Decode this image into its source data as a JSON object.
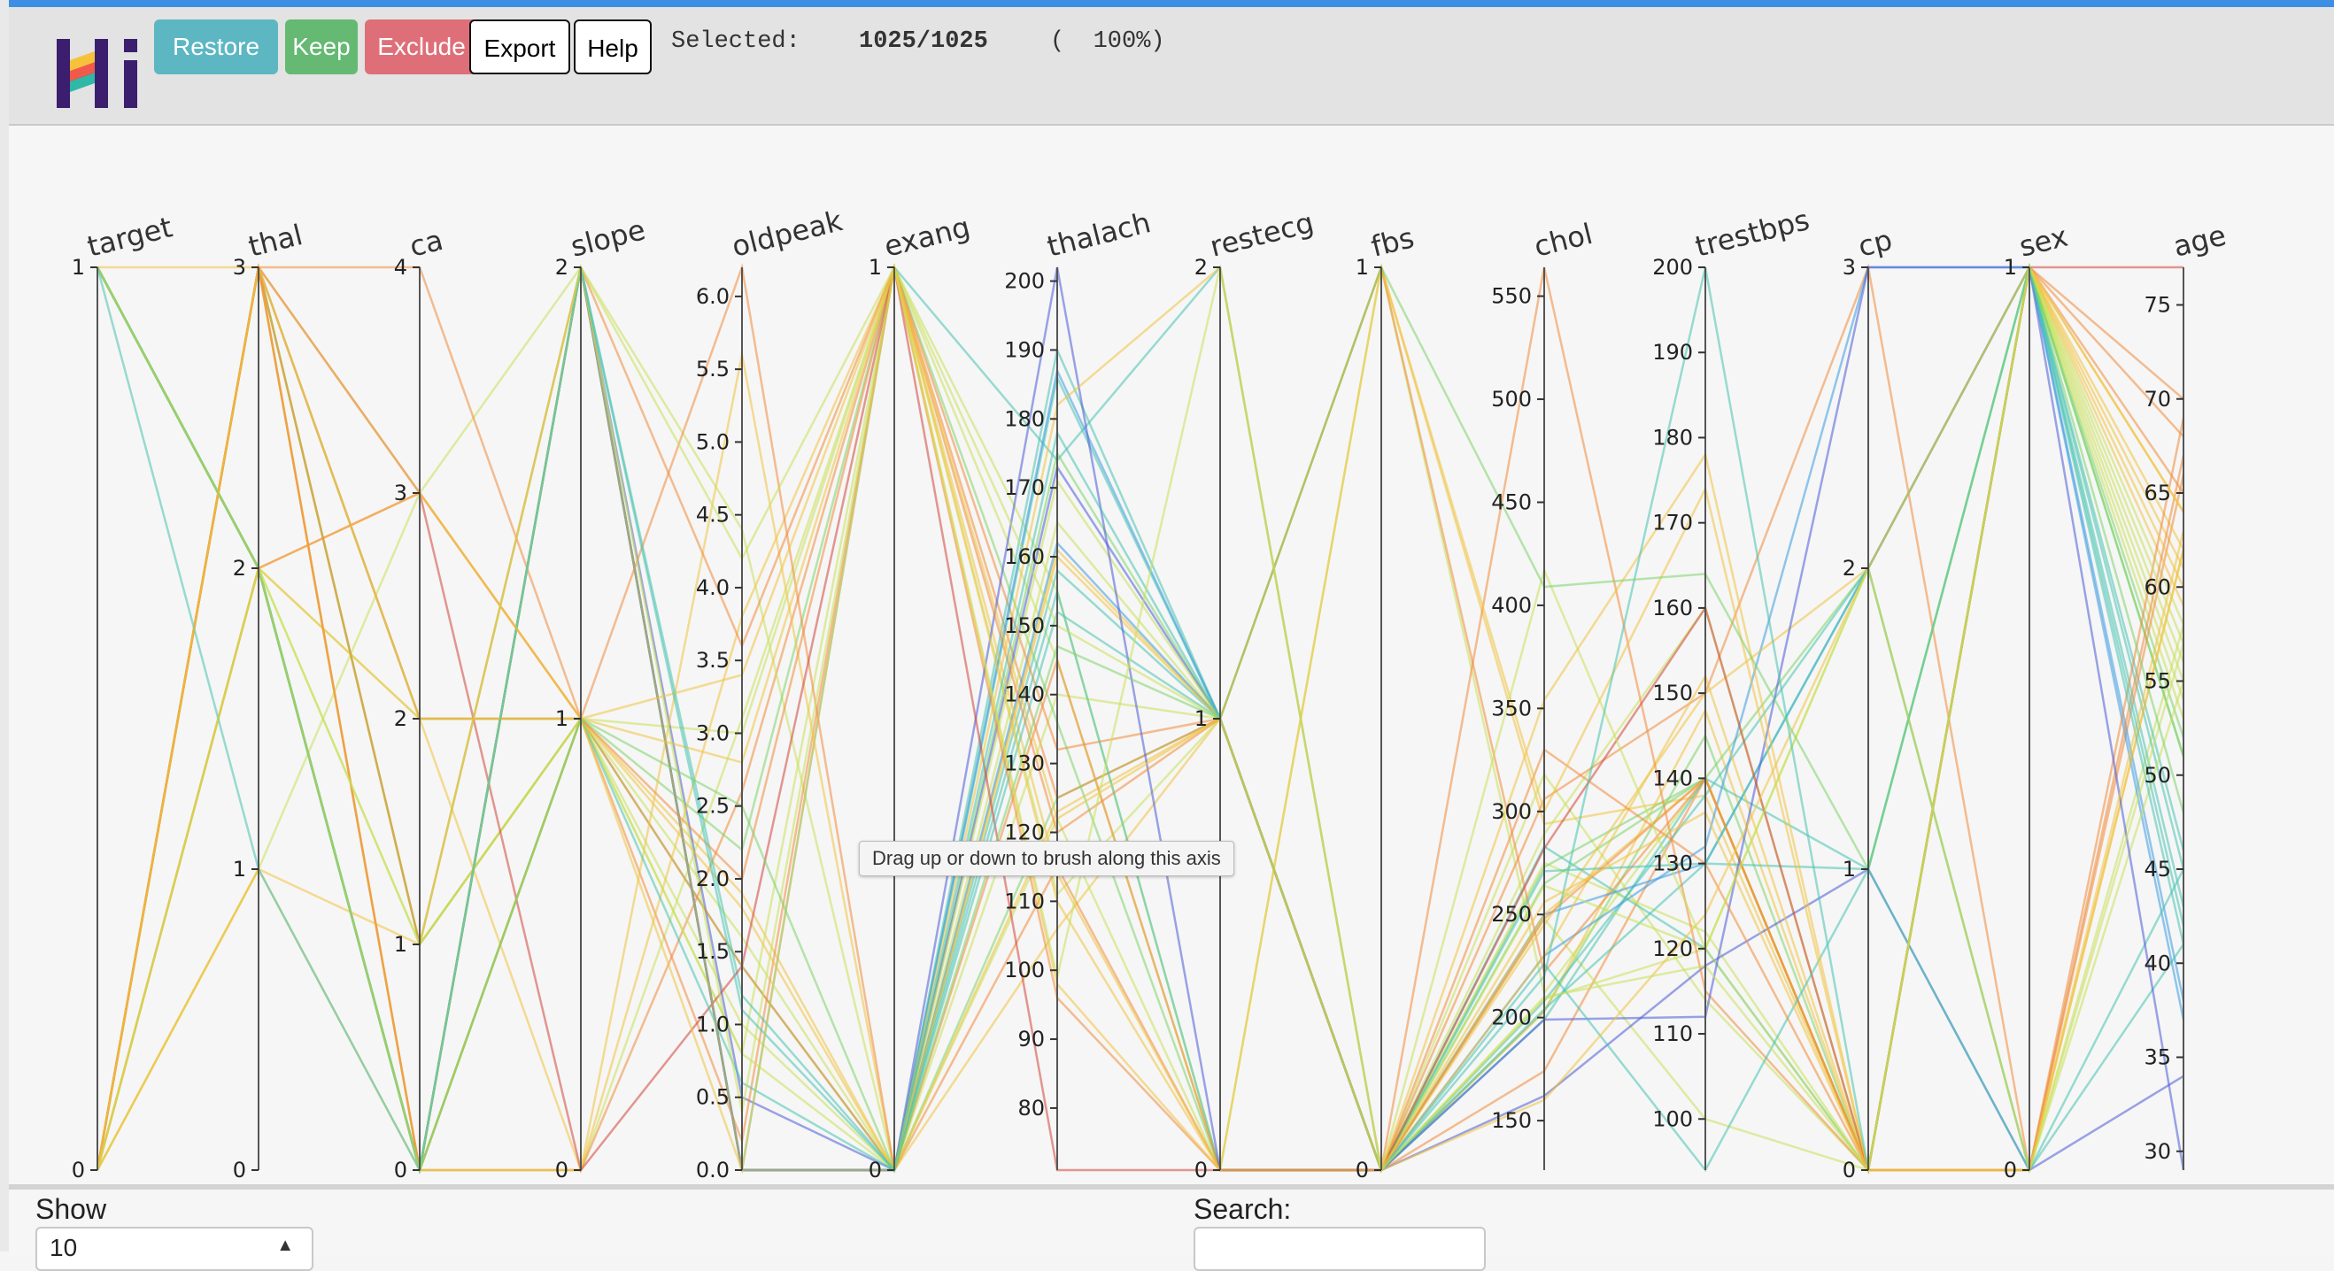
{
  "app": {
    "logo_text": "Hi"
  },
  "toolbar": {
    "restore_label": "Restore",
    "keep_label": "Keep",
    "exclude_label": "Exclude",
    "export_label": "Export",
    "help_label": "Help",
    "selection": {
      "label": "Selected:",
      "count": "1025/1025",
      "percent": "(  100%)"
    }
  },
  "colors": {
    "accent_top": "#3d8fe3",
    "restore": "#5cb7c3",
    "keep": "#65b972",
    "exclude": "#de6f78"
  },
  "tooltip": {
    "text": "Drag up or down to brush along this axis"
  },
  "controls": {
    "show_label": "Show",
    "show_value": "10",
    "search_label": "Search:",
    "search_value": ""
  },
  "chart_data": {
    "type": "parallel-coordinates",
    "title": "",
    "color_by": "age",
    "color_scale": [
      "#4a5bd6",
      "#3a9be0",
      "#47c2b0",
      "#7ed36a",
      "#c8e05a",
      "#f0c240",
      "#f08a3a",
      "#d0463a"
    ],
    "axes": [
      {
        "name": "target",
        "min": 0,
        "max": 1,
        "ticks": [
          0,
          1
        ]
      },
      {
        "name": "thal",
        "min": 0,
        "max": 3,
        "ticks": [
          0,
          1,
          2,
          3
        ]
      },
      {
        "name": "ca",
        "min": 0,
        "max": 4,
        "ticks": [
          0,
          1,
          2,
          3,
          4
        ]
      },
      {
        "name": "slope",
        "min": 0,
        "max": 2,
        "ticks": [
          0,
          1,
          2
        ]
      },
      {
        "name": "oldpeak",
        "min": 0,
        "max": 6.2,
        "ticks": [
          0.0,
          0.5,
          1.0,
          1.5,
          2.0,
          2.5,
          3.0,
          3.5,
          4.0,
          4.5,
          5.0,
          5.5,
          6.0
        ],
        "decimals": 1
      },
      {
        "name": "exang",
        "min": 0,
        "max": 1,
        "ticks": [
          0,
          1
        ]
      },
      {
        "name": "thalach",
        "min": 71,
        "max": 202,
        "ticks": [
          80,
          90,
          100,
          110,
          120,
          130,
          140,
          150,
          160,
          170,
          180,
          190,
          200
        ]
      },
      {
        "name": "restecg",
        "min": 0,
        "max": 2,
        "ticks": [
          0,
          1,
          2
        ]
      },
      {
        "name": "fbs",
        "min": 0,
        "max": 1,
        "ticks": [
          0,
          1
        ]
      },
      {
        "name": "chol",
        "min": 126,
        "max": 564,
        "ticks": [
          150,
          200,
          250,
          300,
          350,
          400,
          450,
          500,
          550
        ]
      },
      {
        "name": "trestbps",
        "min": 94,
        "max": 200,
        "ticks": [
          100,
          110,
          120,
          130,
          140,
          150,
          160,
          170,
          180,
          190,
          200
        ]
      },
      {
        "name": "cp",
        "min": 0,
        "max": 3,
        "ticks": [
          0,
          1,
          2,
          3
        ]
      },
      {
        "name": "sex",
        "min": 0,
        "max": 1,
        "ticks": [
          0,
          1
        ]
      },
      {
        "name": "age",
        "min": 29,
        "max": 77,
        "ticks": [
          30,
          35,
          40,
          45,
          50,
          55,
          60,
          65,
          70,
          75
        ]
      }
    ],
    "records": [
      [
        0,
        3,
        2,
        1,
        1.4,
        0,
        125,
        1,
        0,
        203,
        145,
        0,
        1,
        52
      ],
      [
        0,
        3,
        0,
        0,
        3.1,
        1,
        155,
        0,
        1,
        212,
        140,
        0,
        1,
        53
      ],
      [
        0,
        3,
        0,
        0,
        2.6,
        1,
        125,
        1,
        0,
        174,
        140,
        0,
        1,
        70
      ],
      [
        0,
        3,
        1,
        2,
        0.0,
        0,
        161,
        1,
        0,
        203,
        148,
        0,
        1,
        61
      ],
      [
        0,
        2,
        3,
        1,
        1.9,
        0,
        106,
        1,
        1,
        294,
        138,
        0,
        0,
        62
      ],
      [
        1,
        2,
        0,
        1,
        1.0,
        0,
        122,
        0,
        0,
        248,
        100,
        0,
        0,
        58
      ],
      [
        0,
        1,
        3,
        2,
        4.4,
        0,
        140,
        1,
        0,
        318,
        114,
        0,
        1,
        58
      ],
      [
        0,
        3,
        1,
        1,
        0.8,
        1,
        145,
        0,
        0,
        289,
        160,
        0,
        1,
        55
      ],
      [
        1,
        2,
        0,
        2,
        0.0,
        0,
        158,
        1,
        0,
        283,
        120,
        0,
        1,
        46
      ],
      [
        0,
        2,
        2,
        1,
        3.0,
        1,
        111,
        1,
        0,
        275,
        122,
        0,
        1,
        54
      ],
      [
        1,
        2,
        0,
        2,
        0.0,
        0,
        175,
        1,
        0,
        265,
        140,
        2,
        1,
        51
      ],
      [
        1,
        2,
        0,
        2,
        0.0,
        1,
        174,
        2,
        0,
        208,
        138,
        2,
        1,
        43
      ],
      [
        1,
        2,
        0,
        2,
        0.5,
        0,
        173,
        1,
        0,
        162,
        118,
        1,
        0,
        34
      ],
      [
        0,
        3,
        1,
        1,
        2.2,
        1,
        136,
        0,
        0,
        273,
        140,
        0,
        1,
        51
      ],
      [
        1,
        2,
        0,
        2,
        0.0,
        0,
        190,
        1,
        0,
        199,
        140,
        1,
        1,
        45
      ],
      [
        0,
        2,
        3,
        1,
        1.4,
        0,
        115,
        0,
        0,
        306,
        150,
        3,
        0,
        66
      ],
      [
        1,
        2,
        0,
        1,
        1.6,
        0,
        165,
        1,
        0,
        209,
        120,
        2,
        1,
        56
      ],
      [
        1,
        2,
        0,
        2,
        0.0,
        0,
        162,
        1,
        0,
        230,
        132,
        3,
        1,
        38
      ],
      [
        0,
        3,
        4,
        1,
        0.2,
        1,
        132,
        1,
        1,
        222,
        140,
        0,
        1,
        65
      ],
      [
        1,
        2,
        0,
        2,
        0.0,
        0,
        186,
        1,
        0,
        204,
        130,
        1,
        0,
        41
      ],
      [
        1,
        2,
        0,
        2,
        0.0,
        0,
        187,
        1,
        0,
        250,
        130,
        2,
        1,
        37
      ],
      [
        0,
        2,
        2,
        0,
        3.8,
        1,
        114,
        0,
        0,
        250,
        140,
        0,
        1,
        59
      ],
      [
        1,
        3,
        0,
        0,
        5.6,
        0,
        160,
        1,
        0,
        245,
        150,
        2,
        0,
        62
      ],
      [
        0,
        1,
        1,
        1,
        1.8,
        0,
        123,
        1,
        0,
        230,
        152,
        0,
        1,
        62
      ],
      [
        1,
        2,
        0,
        2,
        1.2,
        0,
        155,
        0,
        0,
        271,
        130,
        2,
        0,
        45
      ],
      [
        0,
        3,
        0,
        1,
        6.2,
        0,
        145,
        0,
        0,
        248,
        140,
        0,
        0,
        69
      ],
      [
        1,
        2,
        1,
        1,
        0.8,
        0,
        171,
        1,
        0,
        264,
        120,
        0,
        0,
        55
      ],
      [
        0,
        3,
        2,
        1,
        2.0,
        1,
        96,
        0,
        0,
        564,
        115,
        0,
        0,
        67
      ],
      [
        1,
        2,
        0,
        2,
        0.0,
        0,
        202,
        0,
        0,
        199,
        112,
        3,
        1,
        29
      ],
      [
        0,
        3,
        3,
        0,
        1.4,
        1,
        71,
        0,
        0,
        282,
        160,
        0,
        1,
        77
      ],
      [
        1,
        2,
        0,
        1,
        0.6,
        0,
        152,
        1,
        0,
        226,
        94,
        1,
        1,
        41
      ],
      [
        0,
        3,
        1,
        2,
        3.6,
        1,
        120,
        1,
        0,
        330,
        130,
        0,
        1,
        68
      ],
      [
        1,
        2,
        0,
        2,
        0.0,
        0,
        182,
        2,
        0,
        160,
        124,
        2,
        1,
        64
      ],
      [
        0,
        1,
        0,
        1,
        2.8,
        1,
        98,
        0,
        1,
        300,
        174,
        0,
        0,
        63
      ],
      [
        1,
        2,
        0,
        2,
        0.4,
        1,
        150,
        1,
        0,
        417,
        120,
        2,
        0,
        57
      ],
      [
        0,
        3,
        2,
        1,
        3.4,
        1,
        110,
        0,
        0,
        354,
        178,
        0,
        1,
        60
      ],
      [
        1,
        1,
        0,
        2,
        1.1,
        0,
        178,
        1,
        0,
        220,
        200,
        0,
        1,
        42
      ],
      [
        0,
        3,
        3,
        1,
        0.0,
        1,
        122,
        1,
        0,
        256,
        136,
        0,
        1,
        64
      ],
      [
        1,
        2,
        0,
        1,
        2.5,
        0,
        147,
        1,
        1,
        409,
        164,
        1,
        1,
        48
      ],
      [
        0,
        2,
        1,
        2,
        4.2,
        1,
        99,
        2,
        0,
        210,
        118,
        0,
        1,
        57
      ]
    ]
  }
}
